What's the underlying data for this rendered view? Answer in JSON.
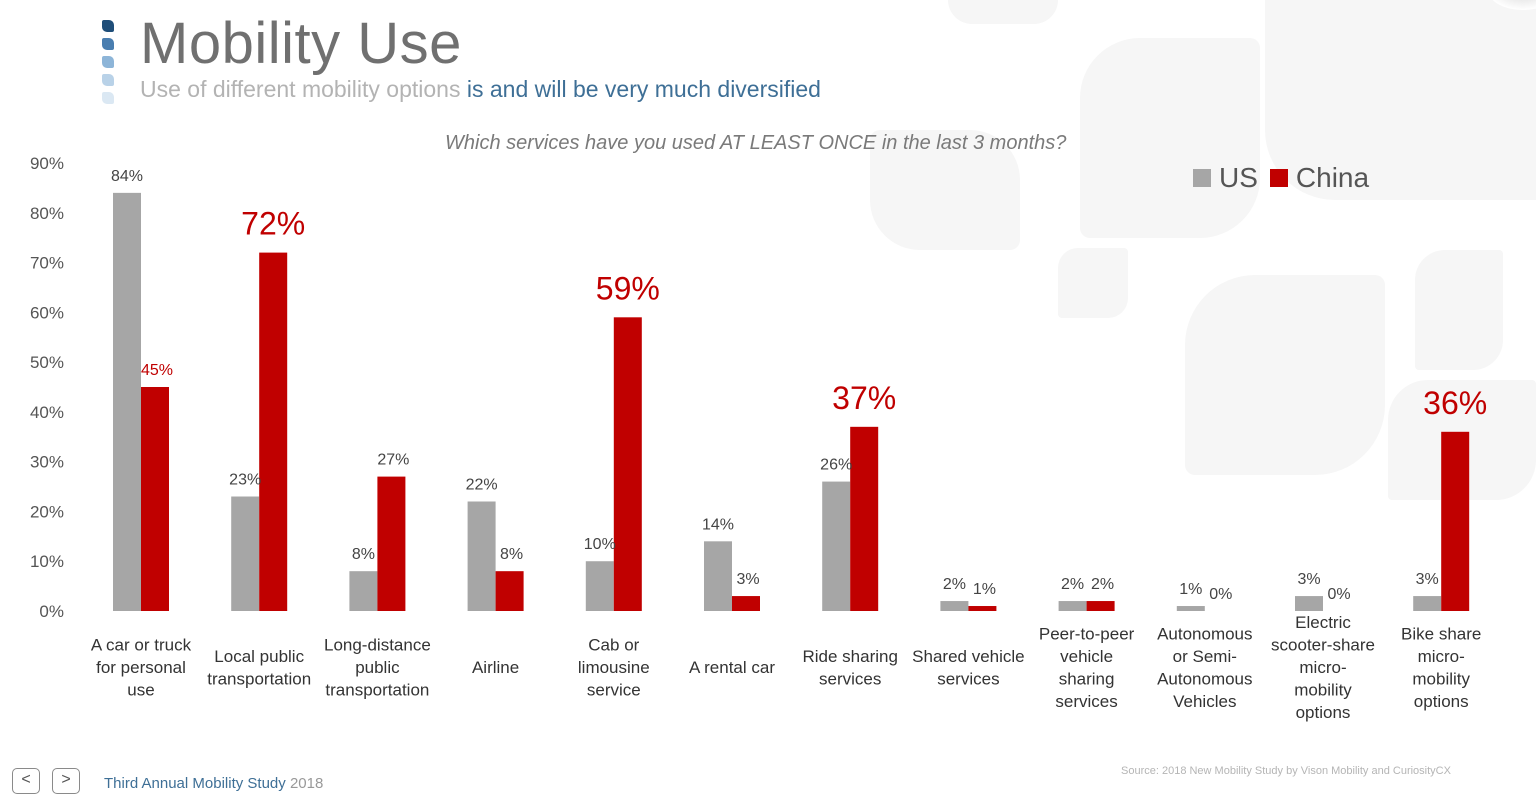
{
  "header": {
    "title": "Mobility Use",
    "subtitle_part1": "Use of different mobility options ",
    "subtitle_part2": "is and will be very much diversified"
  },
  "footer": {
    "study": "Third Annual Mobility Study ",
    "year": "2018",
    "source": "Source: 2018 New Mobility Study by Vison Mobility  and CuriosityCX",
    "prev_label": "<",
    "next_label": ">"
  },
  "colors": {
    "us": "#a6a6a6",
    "china": "#c00000",
    "accent": "#3e6f96",
    "title_bars": [
      "#1f4e79",
      "#4a7eb0",
      "#8db5d8",
      "#b9d2e8",
      "#dbe8f3"
    ]
  },
  "chart_data": {
    "type": "bar",
    "title": "Which services have you used AT LEAST ONCE in the last 3 months?",
    "legend_position": "top-right",
    "ylim": [
      0,
      90
    ],
    "yticks": [
      0,
      10,
      20,
      30,
      40,
      50,
      60,
      70,
      80,
      90
    ],
    "ytick_labels": [
      "0%",
      "10%",
      "20%",
      "30%",
      "40%",
      "50%",
      "60%",
      "70%",
      "80%",
      "90%"
    ],
    "grid": false,
    "categories": [
      [
        "A car or truck",
        "for personal",
        "use"
      ],
      [
        "Local public",
        "transportation"
      ],
      [
        "Long-distance",
        "public",
        "transportation"
      ],
      [
        "Airline"
      ],
      [
        "Cab or",
        "limousine",
        "service"
      ],
      [
        "A rental car"
      ],
      [
        "Ride sharing",
        "services"
      ],
      [
        "Shared vehicle",
        "services"
      ],
      [
        "Peer-to-peer",
        "vehicle",
        "sharing",
        "services"
      ],
      [
        "Autonomous",
        "or Semi-",
        "Autonomous",
        "Vehicles"
      ],
      [
        "Electric",
        "scooter-share",
        "micro-",
        "mobility",
        "options"
      ],
      [
        "Bike share",
        "micro-",
        "mobility",
        "options"
      ]
    ],
    "series": [
      {
        "name": "US",
        "values": [
          84,
          23,
          8,
          22,
          10,
          14,
          26,
          2,
          2,
          1,
          3,
          3
        ],
        "labels": [
          "84%",
          "23%",
          "8%",
          "22%",
          "10%",
          "14%",
          "26%",
          "2%",
          "2%",
          "1%",
          "3%",
          "3%"
        ]
      },
      {
        "name": "China",
        "values": [
          45,
          72,
          27,
          8,
          59,
          3,
          37,
          1,
          2,
          0,
          0,
          36
        ],
        "labels": [
          "45%",
          "72%",
          "27%",
          "8%",
          "59%",
          "3%",
          "37%",
          "1%",
          "2%",
          "0%",
          "0%",
          "36%"
        ],
        "highlight": [
          false,
          true,
          false,
          false,
          true,
          false,
          true,
          false,
          false,
          false,
          false,
          true
        ]
      }
    ]
  }
}
